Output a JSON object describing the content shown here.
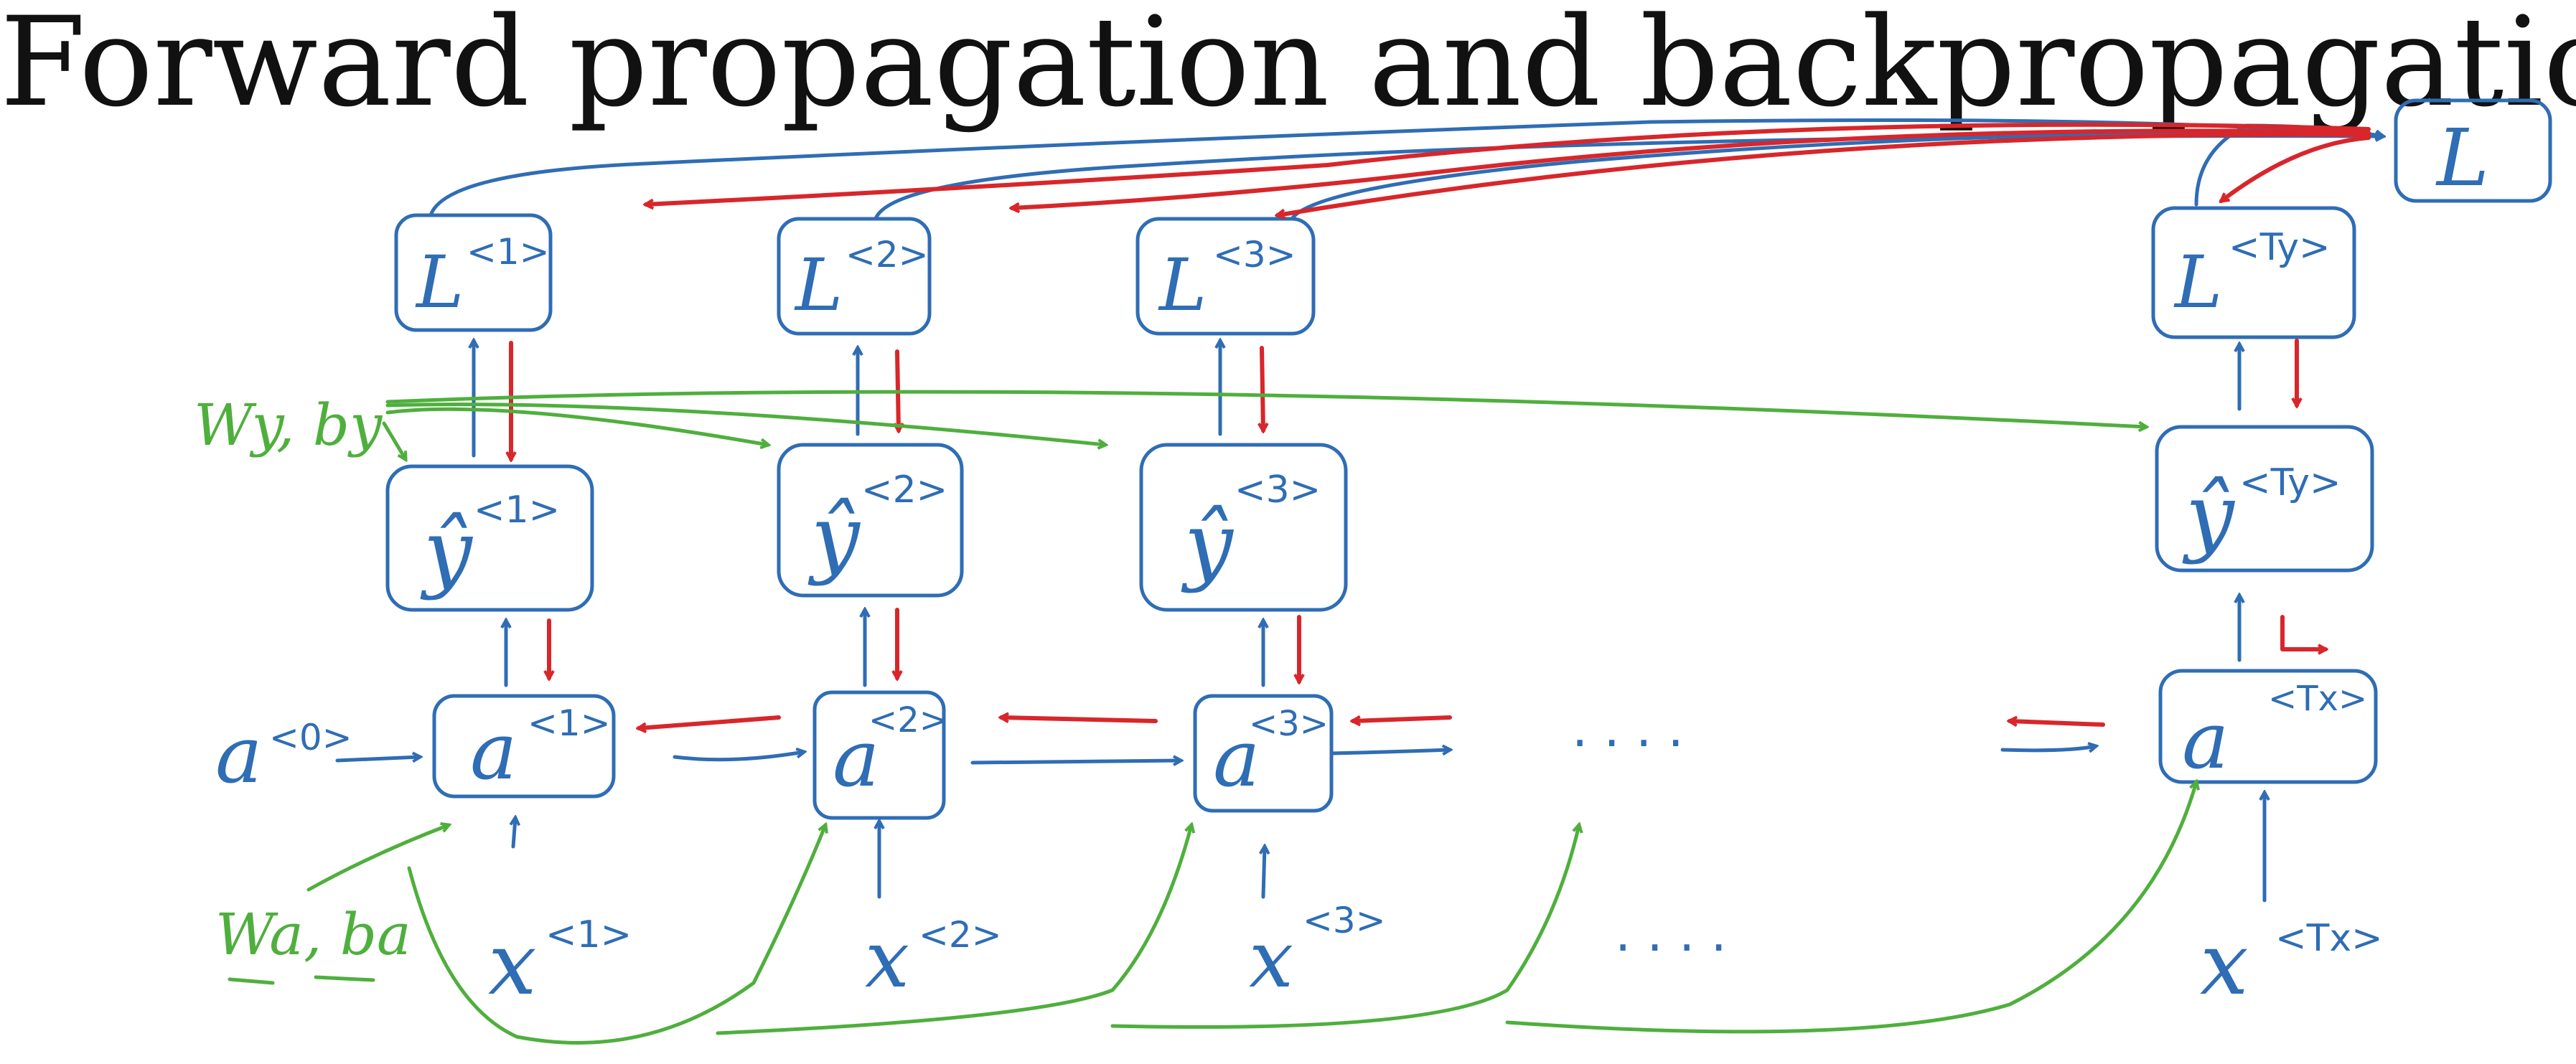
{
  "title": "Forward propagation and backpropagation",
  "colors": {
    "forward": "#2f6db5",
    "backward": "#d8262b",
    "parameters": "#4faf3d"
  },
  "total_loss": {
    "symbol": "L"
  },
  "losses": [
    {
      "symbol": "L",
      "index": "<1>"
    },
    {
      "symbol": "L",
      "index": "<2>"
    },
    {
      "symbol": "L",
      "index": "<3>"
    },
    {
      "symbol": "L",
      "index": "<Ty>"
    }
  ],
  "predictions": [
    {
      "symbol": "ŷ",
      "index": "<1>"
    },
    {
      "symbol": "ŷ",
      "index": "<2>"
    },
    {
      "symbol": "ŷ",
      "index": "<3>"
    },
    {
      "symbol": "ŷ",
      "index": "<Ty>"
    }
  ],
  "activations": [
    {
      "symbol": "a",
      "index": "<1>"
    },
    {
      "symbol": "a",
      "index": "<2>"
    },
    {
      "symbol": "a",
      "index": "<3>"
    },
    {
      "symbol": "a",
      "index": "<Tx>"
    }
  ],
  "inputs": [
    {
      "symbol": "x",
      "index": "<1>"
    },
    {
      "symbol": "x",
      "index": "<2>"
    },
    {
      "symbol": "x",
      "index": "<3>"
    },
    {
      "symbol": "x",
      "index": "<Tx>"
    }
  ],
  "initial_activation": {
    "symbol": "a",
    "index": "<0>"
  },
  "ellipses": [
    "· · · ·",
    "· · · ·"
  ],
  "parameters": {
    "output": "Wy, by",
    "recurrent": "Wa, ba"
  }
}
